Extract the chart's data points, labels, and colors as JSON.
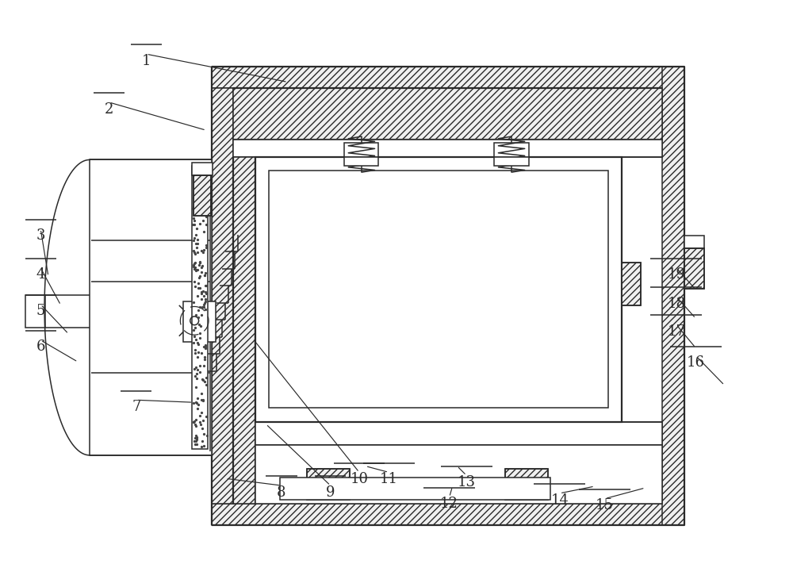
{
  "bg_color": "#ffffff",
  "line_color": "#2a2a2a",
  "fig_width": 10.0,
  "fig_height": 7.4,
  "lw": 1.1,
  "lw2": 1.6,
  "labels_info": [
    [
      1,
      3.6,
      6.42,
      1.78,
      6.6
    ],
    [
      2,
      2.55,
      5.8,
      1.3,
      5.98
    ],
    [
      3,
      0.52,
      3.92,
      0.42,
      4.35
    ],
    [
      4,
      0.68,
      3.55,
      0.42,
      3.85
    ],
    [
      5,
      0.78,
      3.18,
      0.42,
      3.38
    ],
    [
      6,
      0.9,
      2.82,
      0.42,
      2.92
    ],
    [
      7,
      2.38,
      2.3,
      1.65,
      2.15
    ],
    [
      8,
      2.8,
      1.32,
      3.52,
      1.05
    ],
    [
      9,
      3.32,
      2.02,
      4.15,
      1.05
    ],
    [
      10,
      3.15,
      3.12,
      4.52,
      1.22
    ],
    [
      11,
      4.6,
      1.48,
      4.9,
      1.22
    ],
    [
      12,
      5.72,
      1.22,
      5.68,
      0.9
    ],
    [
      13,
      5.78,
      1.48,
      5.9,
      1.18
    ],
    [
      14,
      7.55,
      1.22,
      7.1,
      0.95
    ],
    [
      15,
      8.2,
      1.2,
      7.68,
      0.88
    ],
    [
      16,
      9.22,
      2.52,
      8.85,
      2.72
    ],
    [
      17,
      8.85,
      3.0,
      8.6,
      3.12
    ],
    [
      18,
      8.85,
      3.38,
      8.6,
      3.48
    ],
    [
      19,
      8.85,
      3.75,
      8.6,
      3.85
    ]
  ]
}
